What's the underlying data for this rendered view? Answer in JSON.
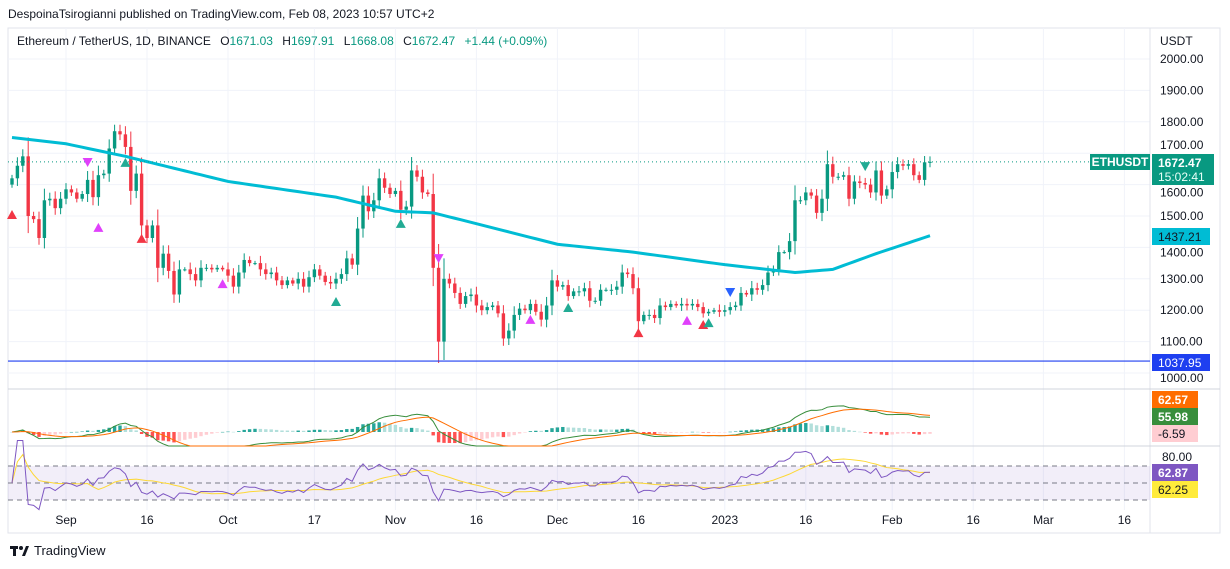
{
  "publisher_line": "DespoinaTsirogianni published on TradingView.com, Feb 08, 2023 10:57 UTC+2",
  "legend": {
    "symbol": "Ethereum / TetherUS, 1D, BINANCE",
    "open_label": "O",
    "open": "1671.03",
    "high_label": "H",
    "high": "1697.91",
    "low_label": "L",
    "low": "1668.08",
    "close_label": "C",
    "close": "1672.47",
    "change": "+1.44 (+0.09%)"
  },
  "footer": {
    "brand": "TradingView"
  },
  "colors": {
    "up": "#089981",
    "down": "#f23645",
    "ma": "#00bcd4",
    "hline": "#1e3ff0",
    "macd": "#388e3c",
    "signal": "#ff6d00",
    "rsi": "#7e57c2",
    "rsi_ma": "#fdd835"
  },
  "chart_data": {
    "type": "candlestick",
    "title": "Ethereum / TetherUS, 1D, BINANCE",
    "currency": "USDT",
    "ylim": [
      960,
      2100
    ],
    "y_ticks": [
      "2000.00",
      "1900.00",
      "1800.00",
      "1700.00",
      "1600.00",
      "1500.00",
      "1400.00",
      "1300.00",
      "1200.00",
      "1100.00",
      "1000.00"
    ],
    "y_tick_values": [
      2000,
      1900,
      1800,
      1700,
      1600,
      1500,
      1400,
      1300,
      1200,
      1100,
      1000
    ],
    "start_date": "2022-08-22",
    "x_ticks": [
      {
        "label": "Sep",
        "day": 10
      },
      {
        "label": "16",
        "day": 25
      },
      {
        "label": "Oct",
        "day": 40
      },
      {
        "label": "17",
        "day": 56
      },
      {
        "label": "Nov",
        "day": 71
      },
      {
        "label": "16",
        "day": 86
      },
      {
        "label": "Dec",
        "day": 101
      },
      {
        "label": "16",
        "day": 116
      },
      {
        "label": "2023",
        "day": 132
      },
      {
        "label": "16",
        "day": 147
      },
      {
        "label": "Feb",
        "day": 163
      },
      {
        "label": "16",
        "day": 178
      },
      {
        "label": "Mar",
        "day": 191
      },
      {
        "label": "16",
        "day": 206
      }
    ],
    "first_open": 1600,
    "closes": [
      1620,
      1660,
      1690,
      1500,
      1490,
      1430,
      1550,
      1555,
      1525,
      1555,
      1585,
      1575,
      1555,
      1570,
      1615,
      1560,
      1630,
      1635,
      1715,
      1770,
      1760,
      1720,
      1580,
      1635,
      1470,
      1430,
      1470,
      1335,
      1380,
      1325,
      1250,
      1330,
      1330,
      1315,
      1295,
      1335,
      1335,
      1330,
      1335,
      1330,
      1310,
      1275,
      1320,
      1360,
      1350,
      1350,
      1330,
      1315,
      1320,
      1295,
      1280,
      1295,
      1285,
      1300,
      1275,
      1305,
      1330,
      1310,
      1290,
      1285,
      1300,
      1315,
      1365,
      1345,
      1460,
      1565,
      1515,
      1550,
      1620,
      1590,
      1570,
      1580,
      1520,
      1530,
      1645,
      1625,
      1575,
      1570,
      1335,
      1100,
      1300,
      1285,
      1255,
      1220,
      1245,
      1250,
      1215,
      1200,
      1210,
      1215,
      1190,
      1110,
      1135,
      1185,
      1205,
      1200,
      1220,
      1195,
      1170,
      1215,
      1295,
      1275,
      1280,
      1245,
      1260,
      1260,
      1270,
      1230,
      1230,
      1265,
      1265,
      1265,
      1275,
      1320,
      1315,
      1270,
      1165,
      1185,
      1185,
      1175,
      1215,
      1210,
      1220,
      1215,
      1220,
      1215,
      1220,
      1210,
      1190,
      1195,
      1200,
      1195,
      1200,
      1210,
      1215,
      1255,
      1250,
      1270,
      1265,
      1280,
      1320,
      1330,
      1385,
      1385,
      1420,
      1550,
      1550,
      1575,
      1565,
      1510,
      1555,
      1665,
      1625,
      1625,
      1630,
      1555,
      1610,
      1605,
      1600,
      1575,
      1645,
      1565,
      1585,
      1640,
      1665,
      1660,
      1665,
      1630,
      1615,
      1671.03,
      1672.47
    ],
    "moving_average": {
      "points": [
        [
          0,
          1750
        ],
        [
          10,
          1730
        ],
        [
          21,
          1690
        ],
        [
          40,
          1610
        ],
        [
          60,
          1560
        ],
        [
          71,
          1515
        ],
        [
          78,
          1510
        ],
        [
          85,
          1480
        ],
        [
          101,
          1410
        ],
        [
          115,
          1385
        ],
        [
          132,
          1345
        ],
        [
          145,
          1320
        ],
        [
          152,
          1330
        ],
        [
          160,
          1380
        ],
        [
          170,
          1437.21
        ]
      ],
      "last": "1437.21"
    },
    "horizontal_line": {
      "value": 1037.95,
      "label": "1037.95"
    },
    "last_price": {
      "symbol": "ETHUSDT",
      "value": "1672.47",
      "countdown": "15:02:41"
    },
    "markers": [
      {
        "day": 0,
        "price": 1503,
        "dir": "up",
        "color": "#f23645"
      },
      {
        "day": 14,
        "price": 1672,
        "dir": "down",
        "color": "#e040fb"
      },
      {
        "day": 16,
        "price": 1462,
        "dir": "up",
        "color": "#e040fb"
      },
      {
        "day": 21,
        "price": 1669,
        "dir": "up",
        "color": "#22ab94"
      },
      {
        "day": 24,
        "price": 1427,
        "dir": "up",
        "color": "#f23645"
      },
      {
        "day": 39,
        "price": 1283,
        "dir": "up",
        "color": "#e040fb"
      },
      {
        "day": 60,
        "price": 1226,
        "dir": "up",
        "color": "#22ab94"
      },
      {
        "day": 72,
        "price": 1475,
        "dir": "up",
        "color": "#22ab94"
      },
      {
        "day": 79,
        "price": 1366,
        "dir": "down",
        "color": "#e040fb"
      },
      {
        "day": 96,
        "price": 1169,
        "dir": "up",
        "color": "#e040fb"
      },
      {
        "day": 103,
        "price": 1207,
        "dir": "up",
        "color": "#22ab94"
      },
      {
        "day": 116,
        "price": 1127,
        "dir": "up",
        "color": "#f23645"
      },
      {
        "day": 125,
        "price": 1166,
        "dir": "up",
        "color": "#e040fb"
      },
      {
        "day": 128,
        "price": 1153,
        "dir": "up",
        "color": "#f23645"
      },
      {
        "day": 129,
        "price": 1159,
        "dir": "up",
        "color": "#22ab94"
      },
      {
        "day": 133,
        "price": 1258,
        "dir": "down",
        "color": "#2962ff"
      },
      {
        "day": 158,
        "price": 1659,
        "dir": "down",
        "color": "#22ab94"
      }
    ],
    "macd": {
      "signal_label": "62.57",
      "macd_label": "55.98",
      "hist_label": "-6.59"
    },
    "rsi": {
      "level_label": "80.00",
      "rsi_label": "62.87",
      "rsi_ma_label": "62.25",
      "bands": [
        70,
        50,
        30
      ]
    }
  }
}
